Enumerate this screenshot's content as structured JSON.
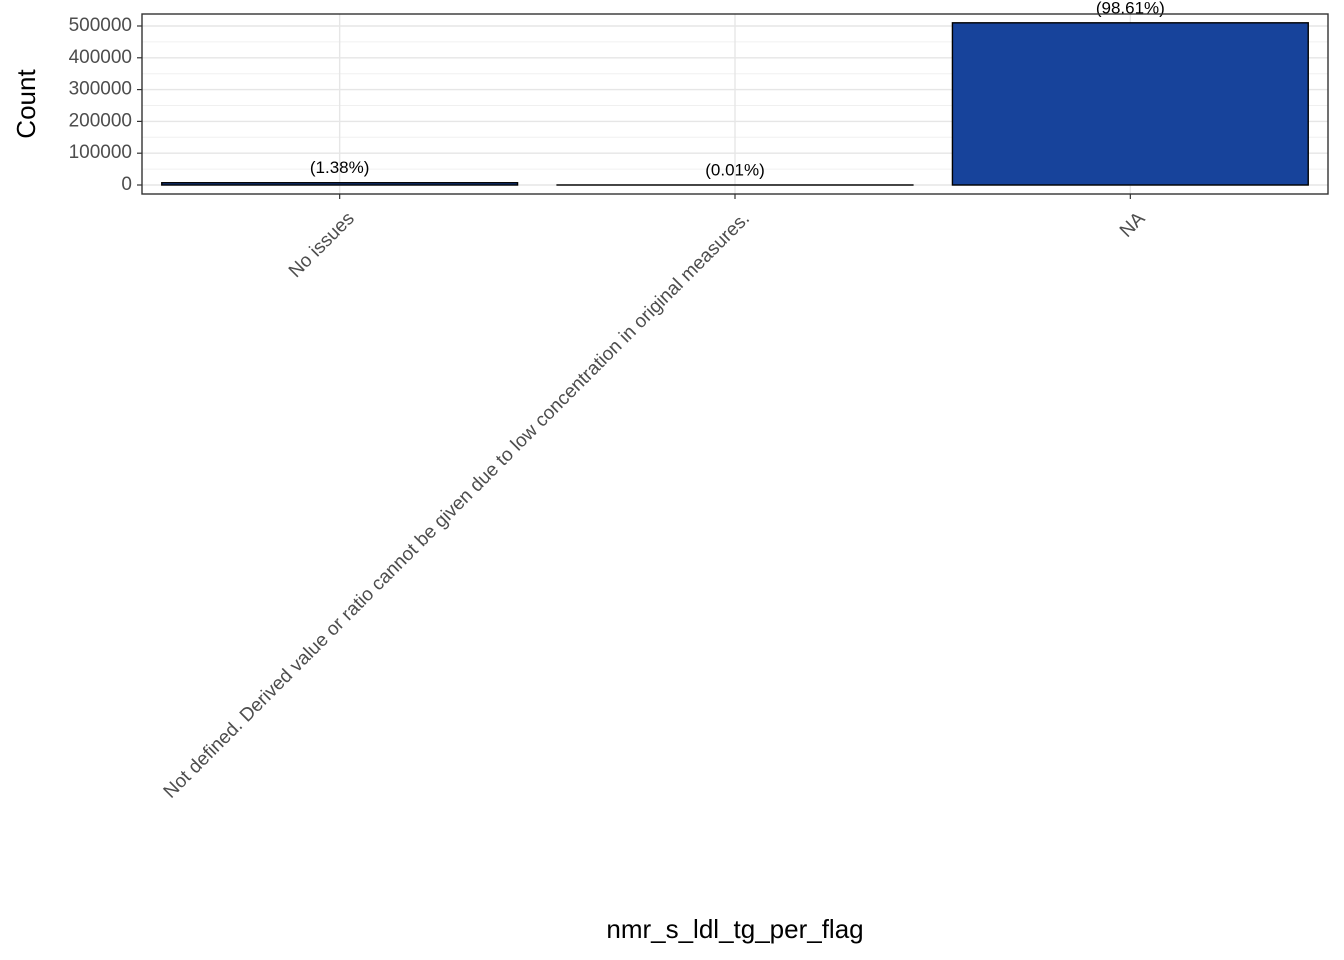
{
  "chart_data": {
    "type": "bar",
    "x_label": "nmr_s_ldl_tg_per_flag",
    "y_label": "Count",
    "categories": [
      "No issues",
      "Not defined. Derived value or ratio cannot be given due to low concentration in original measures.",
      "NA"
    ],
    "values": [
      7140,
      52,
      510000
    ],
    "percent_values": [
      1.38,
      0.01,
      98.61
    ],
    "percent_labels": [
      "(1.38%)",
      "(0.01%)",
      "(98.61%)"
    ],
    "color": "#17439b",
    "edge_color": "#000000",
    "ylim": [
      -28300,
      537700
    ],
    "yticks": [
      0,
      100000,
      200000,
      300000,
      400000,
      500000
    ],
    "grid": true
  }
}
